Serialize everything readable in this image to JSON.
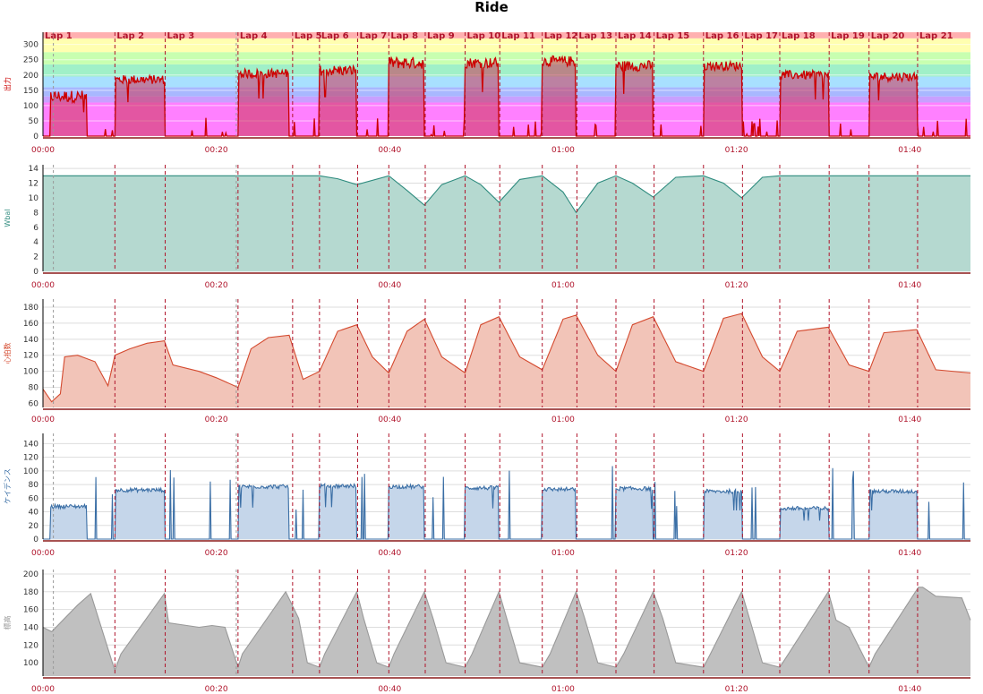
{
  "title": "Ride",
  "colors": {
    "axis": "#8b1a1a",
    "tick": "#b0142b",
    "lap_line": "#b0142b",
    "lap_label": "#b0142b",
    "grid": "#dddddd"
  },
  "time_axis": {
    "min": 0,
    "max": 107,
    "tick_minutes": [
      0,
      20,
      40,
      60,
      80,
      100
    ],
    "tick_labels": [
      "00:00",
      "00:20",
      "00:40",
      "01:00",
      "01:20",
      "01:40"
    ]
  },
  "laps": {
    "labels": [
      "Lap 1",
      "Lap 2",
      "Lap 3",
      "Lap 4",
      "Lap 5",
      "Lap 6",
      "Lap 7",
      "Lap 8",
      "Lap 9",
      "Lap 10",
      "Lap 11",
      "Lap 12",
      "Lap 13",
      "Lap 14",
      "Lap 15",
      "Lap 16",
      "Lap 17",
      "Lap 18",
      "Lap 19",
      "Lap 20",
      "Lap 21"
    ],
    "starts": [
      0,
      8.3,
      14.1,
      22.5,
      28.8,
      31.9,
      36.3,
      39.9,
      44.1,
      48.7,
      52.7,
      57.6,
      61.6,
      66.1,
      70.5,
      76.2,
      80.7,
      85.0,
      90.7,
      95.3,
      100.9
    ],
    "dotted_marker": 1.2
  },
  "chart_data": [
    {
      "type": "area",
      "ylabel": "出力",
      "ylim": [
        0,
        340
      ],
      "yticks": [
        0,
        50,
        100,
        150,
        200,
        250,
        300
      ],
      "line_color": "#cc0000",
      "fill_color": "#cc3355",
      "zone_bands": [
        {
          "from": 0,
          "to": 110,
          "color": "#ff80ff"
        },
        {
          "from": 110,
          "to": 130,
          "color": "#c8a0ff"
        },
        {
          "from": 130,
          "to": 160,
          "color": "#a8b8ff"
        },
        {
          "from": 160,
          "to": 195,
          "color": "#a8e0ff"
        },
        {
          "from": 195,
          "to": 235,
          "color": "#a0f0c8"
        },
        {
          "from": 235,
          "to": 275,
          "color": "#c8ffb0"
        },
        {
          "from": 275,
          "to": 320,
          "color": "#ffffb0"
        },
        {
          "from": 320,
          "to": 340,
          "color": "#ffb0b0"
        }
      ],
      "segments": [
        {
          "start": 0.8,
          "end": 5.0,
          "level": 130,
          "noise": 40
        },
        {
          "start": 8.3,
          "end": 14.0,
          "level": 185,
          "noise": 30
        },
        {
          "start": 22.6,
          "end": 28.4,
          "level": 205,
          "noise": 30
        },
        {
          "start": 31.9,
          "end": 36.2,
          "level": 215,
          "noise": 35
        },
        {
          "start": 39.9,
          "end": 44.0,
          "level": 240,
          "noise": 40
        },
        {
          "start": 48.7,
          "end": 52.6,
          "level": 240,
          "noise": 35
        },
        {
          "start": 57.6,
          "end": 61.5,
          "level": 245,
          "noise": 35
        },
        {
          "start": 66.1,
          "end": 70.4,
          "level": 230,
          "noise": 35
        },
        {
          "start": 76.2,
          "end": 80.6,
          "level": 230,
          "noise": 30
        },
        {
          "start": 85.0,
          "end": 90.6,
          "level": 200,
          "noise": 30
        },
        {
          "start": 95.3,
          "end": 100.8,
          "level": 195,
          "noise": 30
        }
      ]
    },
    {
      "type": "area",
      "ylabel": "Wbal",
      "ylim": [
        0,
        14.5
      ],
      "yticks": [
        0,
        2,
        4,
        6,
        8,
        10,
        12,
        14
      ],
      "line_color": "#2e8b7e",
      "fill_color": "#b5d9d0",
      "x": [
        0,
        25,
        28,
        31.9,
        34,
        36.2,
        39.9,
        42,
        44.0,
        46,
        48.7,
        50.5,
        52.6,
        55,
        57.6,
        60,
        61.5,
        64,
        66.1,
        68,
        70.4,
        73,
        76.2,
        78.5,
        80.6,
        83,
        85,
        88,
        107
      ],
      "y": [
        13.0,
        13.0,
        13.0,
        13.0,
        12.6,
        11.8,
        13.0,
        11.0,
        9.0,
        11.8,
        13.0,
        11.8,
        9.4,
        12.5,
        13.0,
        10.8,
        8.0,
        12.0,
        13.0,
        12.0,
        10.1,
        12.8,
        13.0,
        12.0,
        10.0,
        12.8,
        13.0,
        13.0,
        13.0
      ]
    },
    {
      "type": "area",
      "ylabel": "心拍数",
      "ylim": [
        55,
        190
      ],
      "yticks": [
        60,
        80,
        100,
        120,
        140,
        160,
        180
      ],
      "line_color": "#d44a2f",
      "fill_color": "#f2c4b8",
      "x": [
        0,
        1.0,
        2.0,
        2.5,
        4.0,
        6.0,
        7.5,
        8.3,
        10,
        12,
        14.0,
        15,
        18,
        20,
        22.5,
        24,
        26,
        28.4,
        30,
        31.9,
        34,
        36.2,
        38,
        39.9,
        42,
        44.0,
        46,
        48.7,
        50.5,
        52.6,
        55,
        57.6,
        60,
        61.5,
        64,
        66.1,
        68,
        70.4,
        73,
        76.2,
        78.5,
        80.6,
        83,
        85.0,
        87,
        90.6,
        93,
        95.3,
        97,
        100.8,
        103,
        107
      ],
      "y": [
        78,
        62,
        72,
        118,
        120,
        112,
        82,
        120,
        128,
        135,
        138,
        108,
        100,
        92,
        80,
        128,
        142,
        145,
        90,
        100,
        150,
        158,
        118,
        98,
        150,
        165,
        118,
        98,
        158,
        168,
        118,
        102,
        165,
        170,
        120,
        100,
        158,
        168,
        112,
        100,
        166,
        172,
        118,
        100,
        150,
        155,
        108,
        100,
        148,
        152,
        102,
        98
      ]
    },
    {
      "type": "area",
      "ylabel": "ケイデンス",
      "ylim": [
        0,
        155
      ],
      "yticks": [
        0,
        20,
        40,
        60,
        80,
        100,
        120,
        140
      ],
      "line_color": "#3a6ea5",
      "fill_color": "#c5d6ea",
      "segments": [
        {
          "start": 0.8,
          "end": 5.0,
          "level": 48
        },
        {
          "start": 8.3,
          "end": 14.0,
          "level": 72
        },
        {
          "start": 22.6,
          "end": 28.4,
          "level": 77
        },
        {
          "start": 31.9,
          "end": 36.2,
          "level": 78
        },
        {
          "start": 39.9,
          "end": 44.0,
          "level": 77
        },
        {
          "start": 48.7,
          "end": 52.6,
          "level": 75
        },
        {
          "start": 57.6,
          "end": 61.5,
          "level": 73
        },
        {
          "start": 66.1,
          "end": 70.4,
          "level": 74
        },
        {
          "start": 76.2,
          "end": 80.6,
          "level": 70
        },
        {
          "start": 85.0,
          "end": 90.6,
          "level": 45
        },
        {
          "start": 95.3,
          "end": 100.8,
          "level": 70
        }
      ]
    },
    {
      "type": "area",
      "ylabel": "標高",
      "ylim": [
        85,
        205
      ],
      "yticks": [
        100,
        120,
        140,
        160,
        180,
        200
      ],
      "line_color": "#999999",
      "fill_color": "#c0c0c0",
      "x": [
        0,
        1,
        4,
        5.5,
        8.0,
        8.3,
        9,
        14,
        14.5,
        18,
        19.5,
        21,
        22.5,
        23,
        28,
        29.5,
        30.5,
        31.9,
        32.5,
        36.2,
        37,
        38.5,
        39.9,
        40.5,
        44.0,
        45,
        46.5,
        48.7,
        49.5,
        52.6,
        53.5,
        55,
        57.6,
        58.5,
        61.5,
        62.5,
        64,
        66.1,
        67,
        70.4,
        71.5,
        73,
        76.2,
        77,
        80.6,
        81.5,
        83,
        85.0,
        86,
        90.6,
        91.5,
        93,
        95.3,
        96,
        101,
        101.5,
        103,
        106,
        107
      ],
      "y": [
        140,
        135,
        165,
        178,
        100,
        92,
        110,
        178,
        145,
        140,
        142,
        140,
        95,
        110,
        180,
        150,
        100,
        95,
        110,
        180,
        150,
        100,
        95,
        110,
        180,
        150,
        100,
        95,
        110,
        180,
        150,
        100,
        95,
        110,
        180,
        150,
        100,
        95,
        110,
        180,
        150,
        100,
        95,
        110,
        180,
        150,
        100,
        95,
        110,
        180,
        148,
        140,
        95,
        110,
        185,
        185,
        175,
        173,
        148
      ]
    }
  ]
}
